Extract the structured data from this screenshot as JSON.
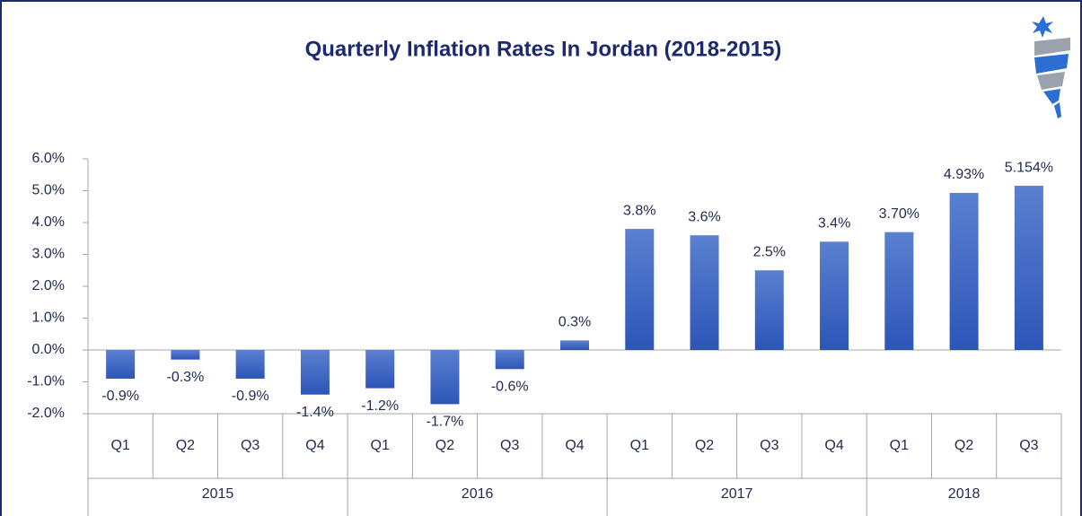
{
  "chart_data": {
    "type": "bar",
    "title": "Quarterly Inflation Rates In Jordan (2018-2015)",
    "groups": [
      {
        "name": "2015",
        "categories": [
          "Q1",
          "Q2",
          "Q3",
          "Q4"
        ]
      },
      {
        "name": "2016",
        "categories": [
          "Q1",
          "Q2",
          "Q3",
          "Q4"
        ]
      },
      {
        "name": "2017",
        "categories": [
          "Q1",
          "Q2",
          "Q3",
          "Q4"
        ]
      },
      {
        "name": "2018",
        "categories": [
          "Q1",
          "Q2",
          "Q3"
        ]
      }
    ],
    "values": [
      -0.9,
      -0.3,
      -0.9,
      -1.4,
      -1.2,
      -1.7,
      -0.6,
      0.3,
      3.8,
      3.6,
      2.5,
      3.4,
      3.7,
      4.93,
      5.154
    ],
    "value_labels": [
      "-0.9%",
      "-0.3%",
      "-0.9%",
      "-1.4%",
      "-1.2%",
      "-1.7%",
      "-0.6%",
      "0.3%",
      "3.8%",
      "3.6%",
      "2.5%",
      "3.4%",
      "3.70%",
      "4.93%",
      "5.154%"
    ],
    "color": "#3f68c6",
    "ylim": [
      -2,
      6
    ],
    "yticks": [
      {
        "value": 6,
        "label": "6.0%"
      },
      {
        "value": 5,
        "label": "5.0%"
      },
      {
        "value": 4,
        "label": "4.0%"
      },
      {
        "value": 3,
        "label": "3.0%"
      },
      {
        "value": 2,
        "label": "2.0%"
      },
      {
        "value": 1,
        "label": "1.0%"
      },
      {
        "value": 0,
        "label": "0.0%"
      },
      {
        "value": -1,
        "label": "-1.0%"
      },
      {
        "value": -2,
        "label": "-2.0%"
      }
    ],
    "grid": false
  }
}
